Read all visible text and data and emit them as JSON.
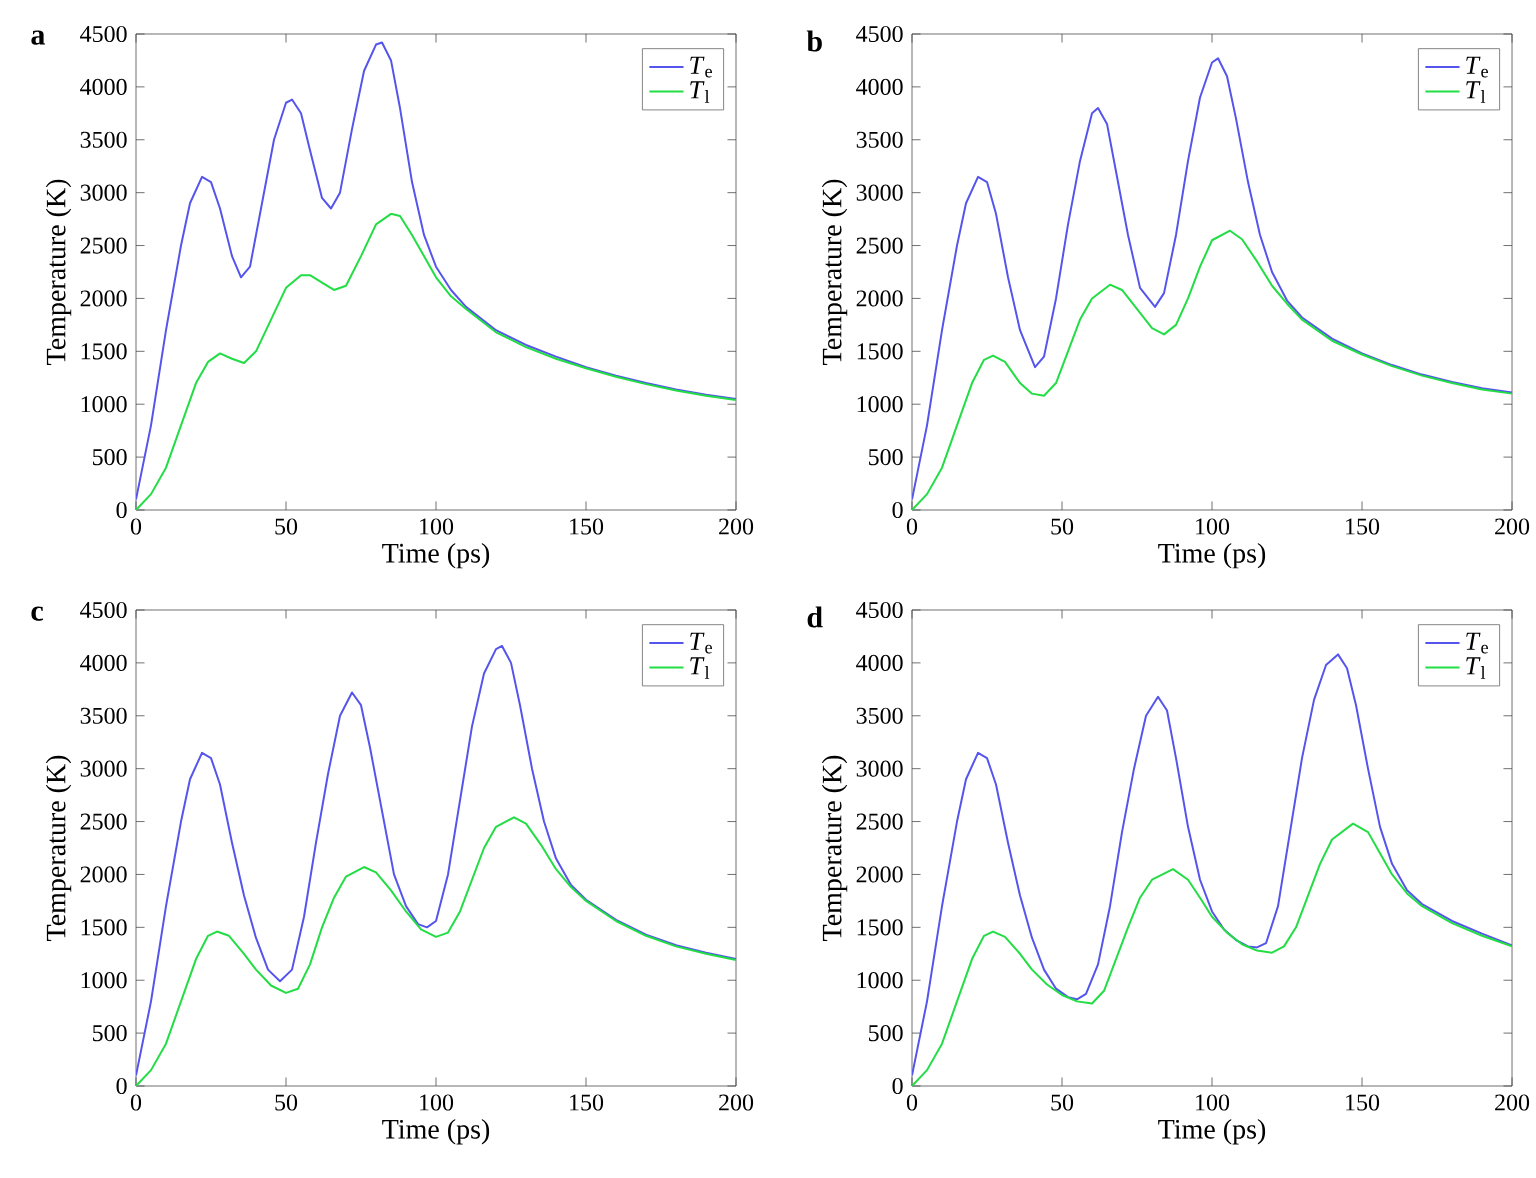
{
  "chart_data": [
    {
      "type": "line",
      "title": "a",
      "xlabel": "Time (ps)",
      "ylabel": "Temperature (K)",
      "xlim": [
        0,
        200
      ],
      "ylim": [
        0,
        4500
      ],
      "xticks": [
        0,
        50,
        100,
        150,
        200
      ],
      "yticks": [
        0,
        500,
        1000,
        1500,
        2000,
        2500,
        3000,
        3500,
        4000,
        4500
      ],
      "legend": "top right",
      "series": [
        {
          "name": "*T*$_{e}$",
          "color": "#5555ee",
          "x": [
            0,
            5,
            10,
            15,
            18,
            22,
            25,
            28,
            32,
            35,
            38,
            42,
            46,
            50,
            52,
            55,
            58,
            62,
            65,
            68,
            72,
            76,
            80,
            82,
            85,
            88,
            92,
            96,
            100,
            105,
            110,
            120,
            130,
            140,
            150,
            160,
            170,
            180,
            190,
            200
          ],
          "values": [
            100,
            800,
            1700,
            2500,
            2900,
            3150,
            3100,
            2850,
            2400,
            2200,
            2300,
            2900,
            3500,
            3850,
            3880,
            3750,
            3400,
            2950,
            2850,
            3000,
            3600,
            4150,
            4400,
            4420,
            4250,
            3800,
            3100,
            2600,
            2300,
            2080,
            1920,
            1700,
            1560,
            1450,
            1350,
            1270,
            1200,
            1140,
            1090,
            1050
          ]
        },
        {
          "name": "*T*$_{l}$",
          "color": "#22dd44",
          "x": [
            0,
            5,
            10,
            15,
            20,
            24,
            28,
            32,
            36,
            40,
            45,
            50,
            55,
            58,
            62,
            66,
            70,
            75,
            80,
            85,
            88,
            92,
            96,
            100,
            105,
            110,
            120,
            130,
            140,
            150,
            160,
            170,
            180,
            190,
            200
          ],
          "values": [
            0,
            150,
            400,
            800,
            1200,
            1400,
            1480,
            1430,
            1390,
            1500,
            1800,
            2100,
            2220,
            2220,
            2150,
            2080,
            2120,
            2400,
            2700,
            2800,
            2780,
            2600,
            2400,
            2200,
            2020,
            1900,
            1680,
            1540,
            1430,
            1340,
            1260,
            1190,
            1130,
            1080,
            1040
          ]
        }
      ]
    },
    {
      "type": "line",
      "title": "b",
      "xlabel": "Time (ps)",
      "ylabel": "Temperature (K)",
      "xlim": [
        0,
        200
      ],
      "ylim": [
        0,
        4500
      ],
      "xticks": [
        0,
        50,
        100,
        150,
        200
      ],
      "yticks": [
        0,
        500,
        1000,
        1500,
        2000,
        2500,
        3000,
        3500,
        4000,
        4500
      ],
      "legend": "top right",
      "series": [
        {
          "name": "*T*$_{e}$",
          "color": "#5555ee",
          "x": [
            0,
            5,
            10,
            15,
            18,
            22,
            25,
            28,
            32,
            36,
            41,
            44,
            48,
            52,
            56,
            60,
            62,
            65,
            68,
            72,
            76,
            81,
            84,
            88,
            92,
            96,
            100,
            102,
            105,
            108,
            112,
            116,
            120,
            125,
            130,
            140,
            150,
            160,
            170,
            180,
            190,
            200
          ],
          "values": [
            100,
            800,
            1700,
            2500,
            2900,
            3150,
            3100,
            2800,
            2200,
            1700,
            1350,
            1450,
            2000,
            2700,
            3300,
            3750,
            3800,
            3650,
            3200,
            2600,
            2100,
            1920,
            2050,
            2600,
            3300,
            3900,
            4230,
            4270,
            4100,
            3700,
            3100,
            2600,
            2250,
            1980,
            1820,
            1620,
            1480,
            1370,
            1280,
            1210,
            1150,
            1110
          ]
        },
        {
          "name": "*T*$_{l}$",
          "color": "#22dd44",
          "x": [
            0,
            5,
            10,
            15,
            20,
            24,
            27,
            31,
            36,
            40,
            44,
            48,
            52,
            56,
            60,
            66,
            70,
            75,
            80,
            84,
            88,
            92,
            96,
            100,
            106,
            110,
            115,
            120,
            125,
            130,
            140,
            150,
            160,
            170,
            180,
            190,
            200
          ],
          "values": [
            0,
            150,
            400,
            800,
            1200,
            1420,
            1460,
            1400,
            1200,
            1100,
            1080,
            1200,
            1500,
            1800,
            2000,
            2130,
            2080,
            1900,
            1720,
            1660,
            1750,
            2000,
            2300,
            2550,
            2640,
            2560,
            2350,
            2120,
            1950,
            1800,
            1600,
            1470,
            1360,
            1270,
            1200,
            1140,
            1100
          ]
        }
      ]
    },
    {
      "type": "line",
      "title": "c",
      "xlabel": "Time (ps)",
      "ylabel": "Temperature (K)",
      "xlim": [
        0,
        200
      ],
      "ylim": [
        0,
        4500
      ],
      "xticks": [
        0,
        50,
        100,
        150,
        200
      ],
      "yticks": [
        0,
        500,
        1000,
        1500,
        2000,
        2500,
        3000,
        3500,
        4000,
        4500
      ],
      "legend": "top right",
      "series": [
        {
          "name": "*T*$_{e}$",
          "color": "#5555ee",
          "x": [
            0,
            5,
            10,
            15,
            18,
            22,
            25,
            28,
            32,
            36,
            40,
            44,
            48,
            52,
            56,
            60,
            64,
            68,
            72,
            75,
            78,
            82,
            86,
            90,
            94,
            97,
            100,
            104,
            108,
            112,
            116,
            120,
            122,
            125,
            128,
            132,
            136,
            140,
            145,
            150,
            160,
            170,
            180,
            190,
            200
          ],
          "values": [
            100,
            800,
            1700,
            2500,
            2900,
            3150,
            3100,
            2850,
            2300,
            1800,
            1400,
            1100,
            990,
            1100,
            1600,
            2300,
            2950,
            3500,
            3720,
            3600,
            3200,
            2600,
            2000,
            1700,
            1530,
            1500,
            1560,
            2000,
            2700,
            3400,
            3900,
            4130,
            4160,
            4000,
            3600,
            3000,
            2500,
            2150,
            1900,
            1760,
            1570,
            1430,
            1330,
            1260,
            1200
          ]
        },
        {
          "name": "*T*$_{l}$",
          "color": "#22dd44",
          "x": [
            0,
            5,
            10,
            15,
            20,
            24,
            27,
            31,
            36,
            40,
            45,
            50,
            54,
            58,
            62,
            66,
            70,
            76,
            80,
            85,
            90,
            95,
            100,
            104,
            108,
            112,
            116,
            120,
            126,
            130,
            135,
            140,
            145,
            150,
            160,
            170,
            180,
            190,
            200
          ],
          "values": [
            0,
            150,
            400,
            800,
            1200,
            1420,
            1460,
            1420,
            1250,
            1100,
            950,
            880,
            920,
            1150,
            1500,
            1780,
            1980,
            2070,
            2020,
            1850,
            1650,
            1480,
            1410,
            1450,
            1650,
            1950,
            2250,
            2450,
            2540,
            2480,
            2280,
            2050,
            1880,
            1750,
            1560,
            1420,
            1320,
            1250,
            1190
          ]
        }
      ]
    },
    {
      "type": "line",
      "title": "d",
      "xlabel": "Time (ps)",
      "ylabel": "Temperature (K)",
      "xlim": [
        0,
        200
      ],
      "ylim": [
        0,
        4500
      ],
      "xticks": [
        0,
        50,
        100,
        150,
        200
      ],
      "yticks": [
        0,
        500,
        1000,
        1500,
        2000,
        2500,
        3000,
        3500,
        4000,
        4500
      ],
      "legend": "top right",
      "series": [
        {
          "name": "*T*$_{e}$",
          "color": "#5555ee",
          "x": [
            0,
            5,
            10,
            15,
            18,
            22,
            25,
            28,
            32,
            36,
            40,
            44,
            48,
            52,
            55,
            58,
            62,
            66,
            70,
            74,
            78,
            82,
            85,
            88,
            92,
            96,
            100,
            104,
            108,
            112,
            115,
            118,
            122,
            126,
            130,
            134,
            138,
            142,
            145,
            148,
            152,
            156,
            160,
            165,
            170,
            180,
            190,
            200
          ],
          "values": [
            100,
            800,
            1700,
            2500,
            2900,
            3150,
            3100,
            2850,
            2300,
            1800,
            1400,
            1100,
            920,
            840,
            820,
            870,
            1150,
            1700,
            2400,
            3000,
            3500,
            3680,
            3550,
            3100,
            2450,
            1950,
            1650,
            1480,
            1380,
            1320,
            1310,
            1350,
            1700,
            2400,
            3100,
            3650,
            3980,
            4080,
            3950,
            3600,
            3000,
            2450,
            2100,
            1850,
            1720,
            1560,
            1440,
            1330
          ]
        },
        {
          "name": "*T*$_{l}$",
          "color": "#22dd44",
          "x": [
            0,
            5,
            10,
            15,
            20,
            24,
            27,
            31,
            36,
            40,
            45,
            50,
            55,
            60,
            64,
            68,
            72,
            76,
            80,
            87,
            92,
            96,
            100,
            105,
            110,
            115,
            120,
            124,
            128,
            132,
            136,
            140,
            147,
            152,
            156,
            160,
            165,
            170,
            180,
            190,
            200
          ],
          "values": [
            0,
            150,
            400,
            800,
            1200,
            1420,
            1460,
            1410,
            1250,
            1100,
            960,
            860,
            800,
            780,
            900,
            1200,
            1500,
            1780,
            1950,
            2050,
            1950,
            1780,
            1600,
            1450,
            1340,
            1280,
            1260,
            1320,
            1500,
            1800,
            2100,
            2330,
            2480,
            2400,
            2200,
            2000,
            1820,
            1700,
            1540,
            1420,
            1320
          ]
        }
      ]
    }
  ]
}
